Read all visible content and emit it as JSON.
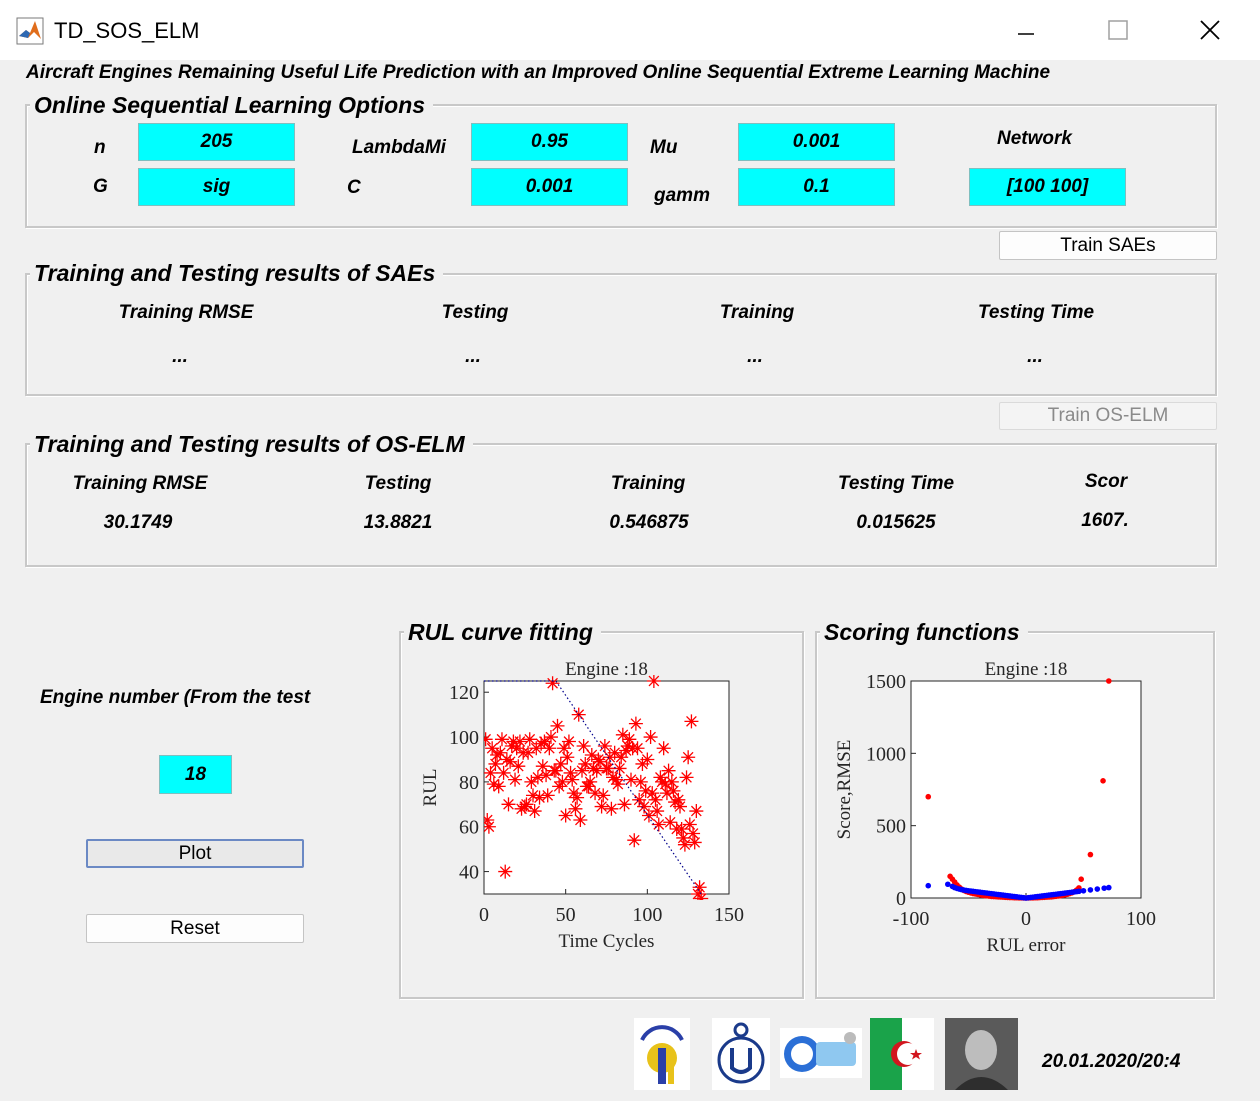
{
  "window": {
    "title": "TD_SOS_ELM"
  },
  "subtitle": "Aircraft Engines Remaining Useful Life Prediction with an Improved Online Sequential Extreme Learning Machine",
  "options": {
    "title": "Online Sequential Learning Options",
    "n_label": "n",
    "n_value": "205",
    "lambda_label": "LambdaMi",
    "lambda_value": "0.95",
    "mu_label": "Mu",
    "mu_value": "0.001",
    "network_label": "Network",
    "network_value": "[100 100]",
    "g_label": "G",
    "g_value": "sig",
    "c_label": "C",
    "c_value": "0.001",
    "gamm_label": "gamm",
    "gamm_value": "0.1"
  },
  "train_saes_button": "Train SAEs",
  "saes": {
    "title": "Training and Testing results of SAEs",
    "headers": [
      "Training RMSE",
      "Testing",
      "Training",
      "Testing Time"
    ],
    "values": [
      "...",
      "...",
      "...",
      "..."
    ]
  },
  "train_oselm_button": "Train OS-ELM",
  "oselm": {
    "title": "Training and Testing results of OS-ELM",
    "headers": [
      "Training RMSE",
      "Testing",
      "Training",
      "Testing Time",
      "Scor"
    ],
    "values": [
      "30.1749",
      "13.8821",
      "0.546875",
      "0.015625",
      "1607."
    ]
  },
  "engine": {
    "label": "Engine number (From the test",
    "value": "18",
    "plot_button": "Plot",
    "reset_button": "Reset"
  },
  "rul_panel": {
    "title": "RUL curve fitting"
  },
  "scoring_panel": {
    "title": "Scoring functions"
  },
  "footer": {
    "datetime": "20.01.2020/20:4"
  },
  "colors": {
    "input_bg": "#00ffff",
    "predicted": "#ff0000",
    "score_blue": "#0000ff",
    "score_red": "#ff0000"
  },
  "chart_data": [
    {
      "type": "scatter",
      "title": "Engine :18",
      "xlabel": "Time Cycles",
      "ylabel": "RUL",
      "xlim": [
        0,
        150
      ],
      "ylim": [
        30,
        125
      ],
      "xticks": [
        0,
        50,
        100,
        150
      ],
      "yticks": [
        40,
        60,
        80,
        100,
        120
      ],
      "grid": false,
      "series": [
        {
          "marker": "asterisk",
          "color": "#ff0000",
          "points": [
            [
              1,
              99
            ],
            [
              2,
              63
            ],
            [
              3,
              60
            ],
            [
              4,
              84
            ],
            [
              5,
              95
            ],
            [
              6,
              79
            ],
            [
              7,
              88
            ],
            [
              8,
              92
            ],
            [
              9,
              78
            ],
            [
              10,
              93
            ],
            [
              11,
              99
            ],
            [
              12,
              84
            ],
            [
              13,
              40
            ],
            [
              14,
              90
            ],
            [
              15,
              70
            ],
            [
              16,
              89
            ],
            [
              17,
              96
            ],
            [
              18,
              98
            ],
            [
              19,
              81
            ],
            [
              20,
              95
            ],
            [
              21,
              87
            ],
            [
              22,
              98
            ],
            [
              23,
              68
            ],
            [
              24,
              93
            ],
            [
              25,
              69
            ],
            [
              26,
              70
            ],
            [
              27,
              93
            ],
            [
              28,
              99
            ],
            [
              29,
              80
            ],
            [
              30,
              74
            ],
            [
              31,
              67
            ],
            [
              32,
              95
            ],
            [
              33,
              82
            ],
            [
              34,
              73
            ],
            [
              35,
              97
            ],
            [
              36,
              87
            ],
            [
              37,
              98
            ],
            [
              38,
              83
            ],
            [
              39,
              74
            ],
            [
              40,
              95
            ],
            [
              41,
              100
            ],
            [
              42,
              124
            ],
            [
              43,
              85
            ],
            [
              44,
              85
            ],
            [
              45,
              105
            ],
            [
              46,
              78
            ],
            [
              47,
              88
            ],
            [
              48,
              80
            ],
            [
              49,
              95
            ],
            [
              50,
              65
            ],
            [
              51,
              91
            ],
            [
              52,
              98
            ],
            [
              53,
              84
            ],
            [
              54,
              81
            ],
            [
              55,
              75
            ],
            [
              56,
              68
            ],
            [
              57,
              73
            ],
            [
              58,
              110
            ],
            [
              59,
              63
            ],
            [
              60,
              85
            ],
            [
              61,
              96
            ],
            [
              62,
              88
            ],
            [
              63,
              78
            ],
            [
              64,
              78
            ],
            [
              65,
              80
            ],
            [
              66,
              92
            ],
            [
              67,
              86
            ],
            [
              68,
              75
            ],
            [
              69,
              85
            ],
            [
              70,
              90
            ],
            [
              71,
              89
            ],
            [
              72,
              69
            ],
            [
              73,
              74
            ],
            [
              74,
              96
            ],
            [
              75,
              86
            ],
            [
              76,
              86
            ],
            [
              77,
              91
            ],
            [
              78,
              68
            ],
            [
              79,
              82
            ],
            [
              80,
              93
            ],
            [
              81,
              81
            ],
            [
              82,
              79
            ],
            [
              83,
              86
            ],
            [
              84,
              91
            ],
            [
              85,
              101
            ],
            [
              86,
              70
            ],
            [
              87,
              94
            ],
            [
              88,
              96
            ],
            [
              89,
              99
            ],
            [
              90,
              81
            ],
            [
              91,
              95
            ],
            [
              92,
              54
            ],
            [
              93,
              106
            ],
            [
              94,
              95
            ],
            [
              95,
              72
            ],
            [
              96,
              80
            ],
            [
              97,
              88
            ],
            [
              98,
              69
            ],
            [
              99,
              76
            ],
            [
              100,
              90
            ],
            [
              101,
              65
            ],
            [
              102,
              100
            ],
            [
              103,
              75
            ],
            [
              104,
              125
            ],
            [
              105,
              72
            ],
            [
              106,
              67
            ],
            [
              107,
              61
            ],
            [
              108,
              82
            ],
            [
              109,
              80
            ],
            [
              110,
              95
            ],
            [
              111,
              79
            ],
            [
              112,
              75
            ],
            [
              113,
              85
            ],
            [
              114,
              62
            ],
            [
              115,
              80
            ],
            [
              116,
              76
            ],
            [
              117,
              71
            ],
            [
              118,
              59
            ],
            [
              119,
              72
            ],
            [
              120,
              69
            ],
            [
              121,
              59
            ],
            [
              122,
              55
            ],
            [
              123,
              52
            ],
            [
              124,
              82
            ],
            [
              125,
              91
            ],
            [
              126,
              61
            ],
            [
              127,
              107
            ],
            [
              128,
              57
            ],
            [
              129,
              53
            ],
            [
              130,
              67
            ],
            [
              131,
              30
            ],
            [
              132,
              33
            ],
            [
              133,
              28
            ]
          ]
        },
        {
          "line": "dotted",
          "color": "#00008b",
          "points": [
            [
              0,
              125
            ],
            [
              44,
              125
            ],
            [
              133,
              30
            ]
          ]
        }
      ]
    },
    {
      "type": "scatter",
      "title": "Engine :18",
      "xlabel": "RUL error",
      "ylabel": "Score,RMSE",
      "xlim": [
        -100,
        100
      ],
      "ylim": [
        0,
        1500
      ],
      "xticks": [
        -100,
        0,
        100
      ],
      "yticks": [
        0,
        500,
        1000,
        1500
      ],
      "grid": false,
      "series": [
        {
          "name": "",
          "color": "#ff0000",
          "points": [
            [
              -85,
              700
            ],
            [
              -66,
              150
            ],
            [
              -64,
              130
            ],
            [
              -62,
              110
            ],
            [
              -60,
              90
            ],
            [
              -58,
              75
            ],
            [
              -56,
              62
            ],
            [
              -54,
              52
            ],
            [
              -52,
              45
            ],
            [
              -50,
              40
            ],
            [
              -48,
              35
            ],
            [
              -46,
              31
            ],
            [
              -44,
              28
            ],
            [
              -42,
              25
            ],
            [
              -40,
              22
            ],
            [
              -38,
              19
            ],
            [
              -36,
              17
            ],
            [
              -34,
              15
            ],
            [
              -32,
              13
            ],
            [
              -30,
              11
            ],
            [
              -28,
              10
            ],
            [
              -26,
              9
            ],
            [
              -24,
              8
            ],
            [
              -22,
              7
            ],
            [
              -20,
              6
            ],
            [
              -18,
              5
            ],
            [
              -16,
              4
            ],
            [
              -14,
              3
            ],
            [
              -12,
              3
            ],
            [
              -10,
              2
            ],
            [
              -8,
              2
            ],
            [
              -6,
              1
            ],
            [
              -4,
              1
            ],
            [
              -2,
              0
            ],
            [
              0,
              0
            ],
            [
              2,
              0
            ],
            [
              4,
              1
            ],
            [
              6,
              1
            ],
            [
              8,
              2
            ],
            [
              10,
              2
            ],
            [
              12,
              3
            ],
            [
              14,
              4
            ],
            [
              16,
              5
            ],
            [
              18,
              6
            ],
            [
              20,
              7
            ],
            [
              22,
              8
            ],
            [
              24,
              10
            ],
            [
              26,
              12
            ],
            [
              28,
              14
            ],
            [
              30,
              16
            ],
            [
              32,
              19
            ],
            [
              34,
              22
            ],
            [
              36,
              26
            ],
            [
              38,
              31
            ],
            [
              40,
              36
            ],
            [
              42,
              44
            ],
            [
              44,
              55
            ],
            [
              46,
              70
            ],
            [
              48,
              130
            ],
            [
              56,
              300
            ],
            [
              67,
              810
            ],
            [
              72,
              1500
            ]
          ]
        },
        {
          "name": "",
          "color": "#0000ff",
          "points": [
            [
              -85,
              85
            ],
            [
              -68,
              95
            ],
            [
              -64,
              80
            ],
            [
              -62,
              72
            ],
            [
              -60,
              66
            ],
            [
              -58,
              62
            ],
            [
              -56,
              58
            ],
            [
              -54,
              55
            ],
            [
              -52,
              52
            ],
            [
              -50,
              50
            ],
            [
              -48,
              48
            ],
            [
              -46,
              46
            ],
            [
              -44,
              44
            ],
            [
              -42,
              42
            ],
            [
              -40,
              40
            ],
            [
              -38,
              38
            ],
            [
              -36,
              36
            ],
            [
              -34,
              34
            ],
            [
              -32,
              32
            ],
            [
              -30,
              30
            ],
            [
              -28,
              28
            ],
            [
              -26,
              26
            ],
            [
              -24,
              24
            ],
            [
              -22,
              22
            ],
            [
              -20,
              20
            ],
            [
              -18,
              18
            ],
            [
              -16,
              16
            ],
            [
              -14,
              14
            ],
            [
              -12,
              12
            ],
            [
              -10,
              10
            ],
            [
              -8,
              8
            ],
            [
              -6,
              6
            ],
            [
              -4,
              4
            ],
            [
              -2,
              2
            ],
            [
              0,
              0
            ],
            [
              2,
              2
            ],
            [
              4,
              4
            ],
            [
              6,
              6
            ],
            [
              8,
              8
            ],
            [
              10,
              10
            ],
            [
              12,
              12
            ],
            [
              14,
              14
            ],
            [
              16,
              16
            ],
            [
              18,
              18
            ],
            [
              20,
              20
            ],
            [
              22,
              22
            ],
            [
              24,
              24
            ],
            [
              26,
              26
            ],
            [
              28,
              28
            ],
            [
              30,
              30
            ],
            [
              32,
              32
            ],
            [
              34,
              34
            ],
            [
              36,
              36
            ],
            [
              38,
              38
            ],
            [
              40,
              40
            ],
            [
              42,
              42
            ],
            [
              44,
              44
            ],
            [
              46,
              46
            ],
            [
              50,
              50
            ],
            [
              56,
              56
            ],
            [
              62,
              62
            ],
            [
              68,
              68
            ],
            [
              72,
              72
            ]
          ]
        }
      ]
    }
  ]
}
